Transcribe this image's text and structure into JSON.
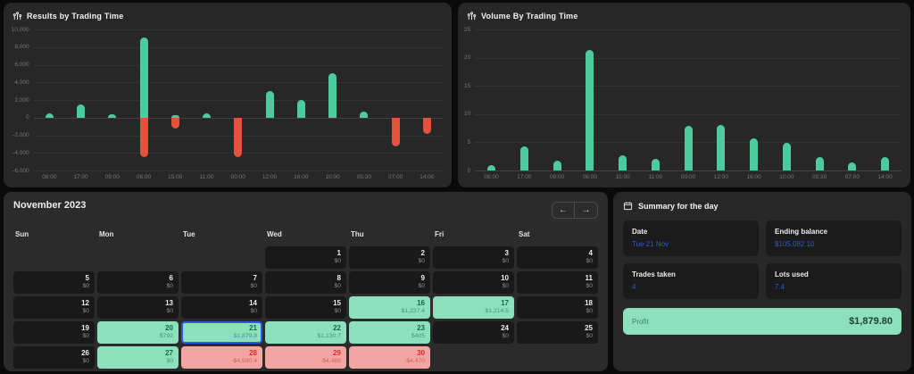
{
  "colors": {
    "green": "#4ccb9f",
    "red": "#e2523c",
    "blue": "#2e54e8",
    "calendar_profit_bg": "#8ce0bc",
    "calendar_loss_bg": "#f2a5a2"
  },
  "chart_data": [
    {
      "key": "results",
      "type": "bar",
      "title": "Results by Trading Time",
      "icon": "candlestick-chart-icon",
      "ylim": [
        -6000,
        10000
      ],
      "yticks": [
        {
          "v": 10000,
          "label": "10,000"
        },
        {
          "v": 8000,
          "label": "8,000"
        },
        {
          "v": 6000,
          "label": "6,000"
        },
        {
          "v": 4000,
          "label": "4,000"
        },
        {
          "v": 2000,
          "label": "2,000"
        },
        {
          "v": 0,
          "label": "0"
        },
        {
          "v": -2000,
          "label": "-2,000"
        },
        {
          "v": -4000,
          "label": "-4,000"
        },
        {
          "v": -6000,
          "label": "-6,000"
        }
      ],
      "categories": [
        "08:00",
        "17:00",
        "09:00",
        "06:00",
        "15:00",
        "11:00",
        "00:00",
        "12:00",
        "16:00",
        "10:00",
        "05:30",
        "07:00",
        "14:00"
      ],
      "series": [
        {
          "name": "profit",
          "color_key": "green",
          "values": [
            450,
            1450,
            400,
            9050,
            250,
            450,
            0,
            3050,
            2050,
            5050,
            650,
            0,
            0
          ]
        },
        {
          "name": "loss",
          "color_key": "red",
          "values": [
            0,
            0,
            0,
            -4450,
            -1250,
            0,
            -4450,
            0,
            0,
            0,
            0,
            -3250,
            -1850
          ]
        }
      ],
      "legend": "none",
      "grid": "horizontal"
    },
    {
      "key": "volume",
      "type": "bar",
      "title": "Volume By Trading Time",
      "icon": "candlestick-chart-icon",
      "ylim": [
        0,
        25
      ],
      "yticks": [
        {
          "v": 25,
          "label": "25"
        },
        {
          "v": 20,
          "label": "20"
        },
        {
          "v": 15,
          "label": "15"
        },
        {
          "v": 10,
          "label": "10"
        },
        {
          "v": 5,
          "label": "5"
        },
        {
          "v": 0,
          "label": "0"
        }
      ],
      "categories": [
        "08:00",
        "17:00",
        "09:00",
        "06:00",
        "15:00",
        "11:00",
        "00:00",
        "12:00",
        "16:00",
        "10:00",
        "05:30",
        "07:00",
        "14:00"
      ],
      "series": [
        {
          "name": "volume",
          "color_key": "green",
          "values": [
            1,
            4.3,
            1.7,
            21.3,
            2.7,
            2,
            7.9,
            8.1,
            5.7,
            4.9,
            2.3,
            1.4,
            2.3
          ]
        }
      ],
      "legend": "none",
      "grid": "horizontal"
    }
  ],
  "calendar": {
    "title": "November 2023",
    "nav": {
      "prev_icon": "←",
      "next_icon": "→"
    },
    "weekdays": [
      "Sun",
      "Mon",
      "Tue",
      "Wed",
      "Thu",
      "Fri",
      "Sat"
    ],
    "weeks": [
      [
        null,
        null,
        null,
        {
          "day": 1,
          "value": "$0",
          "state": "zero"
        },
        {
          "day": 2,
          "value": "$0",
          "state": "zero"
        },
        {
          "day": 3,
          "value": "$0",
          "state": "zero"
        },
        {
          "day": 4,
          "value": "$0",
          "state": "zero"
        }
      ],
      [
        {
          "day": 5,
          "value": "$0",
          "state": "zero"
        },
        {
          "day": 6,
          "value": "$0",
          "state": "zero"
        },
        {
          "day": 7,
          "value": "$0",
          "state": "zero"
        },
        {
          "day": 8,
          "value": "$0",
          "state": "zero"
        },
        {
          "day": 9,
          "value": "$0",
          "state": "zero"
        },
        {
          "day": 10,
          "value": "$0",
          "state": "zero"
        },
        {
          "day": 11,
          "value": "$0",
          "state": "zero"
        }
      ],
      [
        {
          "day": 12,
          "value": "$0",
          "state": "zero"
        },
        {
          "day": 13,
          "value": "$0",
          "state": "zero"
        },
        {
          "day": 14,
          "value": "$0",
          "state": "zero"
        },
        {
          "day": 15,
          "value": "$0",
          "state": "zero"
        },
        {
          "day": 16,
          "value": "$1,237.4",
          "state": "profit"
        },
        {
          "day": 17,
          "value": "$1,214.5",
          "state": "profit"
        },
        {
          "day": 18,
          "value": "$0",
          "state": "zero"
        }
      ],
      [
        {
          "day": 19,
          "value": "$0",
          "state": "zero"
        },
        {
          "day": 20,
          "value": "$792",
          "state": "profit"
        },
        {
          "day": 21,
          "value": "$1,879.8",
          "state": "profit",
          "selected": true
        },
        {
          "day": 22,
          "value": "$1,130.7",
          "state": "profit"
        },
        {
          "day": 23,
          "value": "$405",
          "state": "profit"
        },
        {
          "day": 24,
          "value": "$0",
          "state": "zero"
        },
        {
          "day": 25,
          "value": "$0",
          "state": "zero"
        }
      ],
      [
        {
          "day": 26,
          "value": "$0",
          "state": "zero"
        },
        {
          "day": 27,
          "value": "$0",
          "state": "profit"
        },
        {
          "day": 28,
          "value": "-$4,590.4",
          "state": "loss"
        },
        {
          "day": 29,
          "value": "-$4,488",
          "state": "loss"
        },
        {
          "day": 30,
          "value": "-$4,470",
          "state": "loss"
        },
        null,
        null
      ]
    ]
  },
  "summary": {
    "title": "Summary for the day",
    "icon": "calendar-icon",
    "cards": [
      {
        "label": "Date",
        "value": "Tue 21 Nov"
      },
      {
        "label": "Ending balance",
        "value": "$105,082.10"
      },
      {
        "label": "Trades taken",
        "value": "4"
      },
      {
        "label": "Lots used",
        "value": "7.4"
      }
    ],
    "profit": {
      "label": "Profit",
      "value": "$1,879.80"
    }
  }
}
